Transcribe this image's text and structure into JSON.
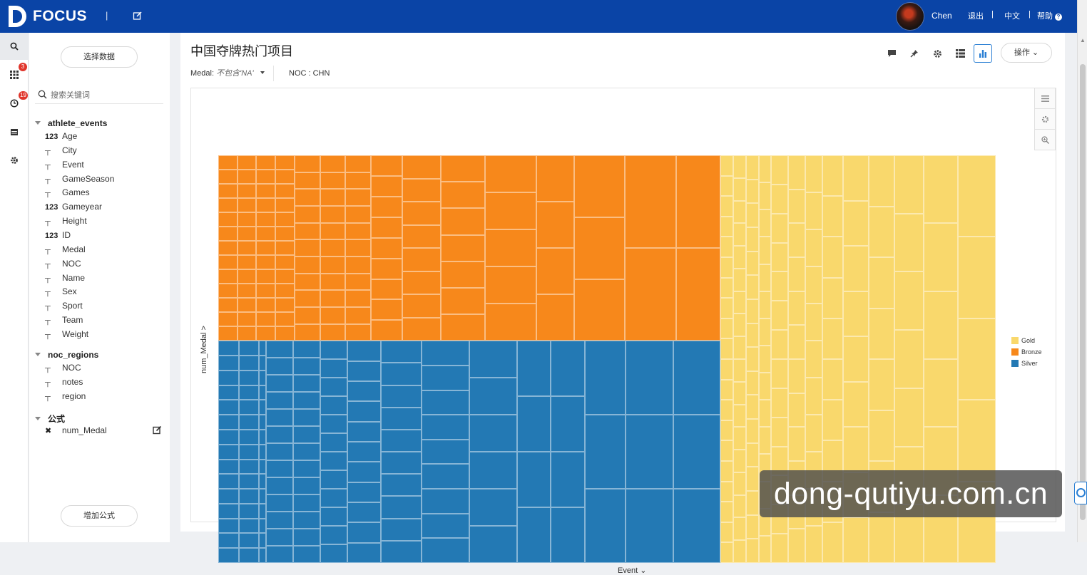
{
  "topbar": {
    "brand": "FOCUS",
    "separator": "|",
    "username": "Chen",
    "logout": "退出",
    "language": "中文",
    "help": "帮助",
    "link_sep": "|"
  },
  "rail": {
    "items": [
      {
        "icon": "search-icon",
        "active": true
      },
      {
        "icon": "dashboard-grid-icon",
        "badge": "3"
      },
      {
        "icon": "history-clock-icon",
        "badge": "19"
      },
      {
        "icon": "calendar-icon"
      },
      {
        "icon": "gear-icon"
      }
    ]
  },
  "panel": {
    "select_data": "选择数据",
    "search_placeholder": "搜索关键词",
    "groups": [
      {
        "name": "athlete_events",
        "fields": [
          {
            "type": "123",
            "name": "Age"
          },
          {
            "type": "T",
            "name": "City"
          },
          {
            "type": "T",
            "name": "Event"
          },
          {
            "type": "T",
            "name": "GameSeason"
          },
          {
            "type": "T",
            "name": "Games"
          },
          {
            "type": "123",
            "name": "Gameyear"
          },
          {
            "type": "T",
            "name": "Height"
          },
          {
            "type": "123",
            "name": "ID"
          },
          {
            "type": "T",
            "name": "Medal"
          },
          {
            "type": "T",
            "name": "NOC"
          },
          {
            "type": "T",
            "name": "Name"
          },
          {
            "type": "T",
            "name": "Sex"
          },
          {
            "type": "T",
            "name": "Sport"
          },
          {
            "type": "T",
            "name": "Team"
          },
          {
            "type": "T",
            "name": "Weight"
          }
        ]
      },
      {
        "name": "noc_regions",
        "fields": [
          {
            "type": "T",
            "name": "NOC"
          },
          {
            "type": "T",
            "name": "notes"
          },
          {
            "type": "T",
            "name": "region"
          }
        ]
      },
      {
        "name": "公式",
        "fields": [
          {
            "type": "x",
            "name": "num_Medal"
          }
        ]
      }
    ],
    "add_formula": "增加公式"
  },
  "main": {
    "title": "中国夺牌热门项目",
    "filters": {
      "medal_label": "Medal:",
      "medal_value": "不包含'NA'",
      "noc": "NOC : CHN"
    },
    "toolbar": [
      "comment-icon",
      "pin-icon",
      "gear-icon",
      "table-view-icon",
      "bar-chart-icon"
    ],
    "ops_label": "操作",
    "chart_tools": [
      "list-icon",
      "gear-icon",
      "zoom-icon"
    ]
  },
  "chart_data": {
    "type": "treemap",
    "title": "",
    "xlabel": "Event",
    "ylabel": "num_Medal",
    "colors": {
      "Gold": "#f9d86c",
      "Bronze": "#f7881b",
      "Silver": "#2379b4"
    },
    "legend": [
      "Gold",
      "Bronze",
      "Silver"
    ],
    "legend_position": "right",
    "series_share": [
      {
        "name": "Gold",
        "value": 0.354
      },
      {
        "name": "Bronze",
        "value": 0.294
      },
      {
        "name": "Silver",
        "value": 0.352
      }
    ]
  },
  "watermark": "dong-qutiyu.com.cn"
}
